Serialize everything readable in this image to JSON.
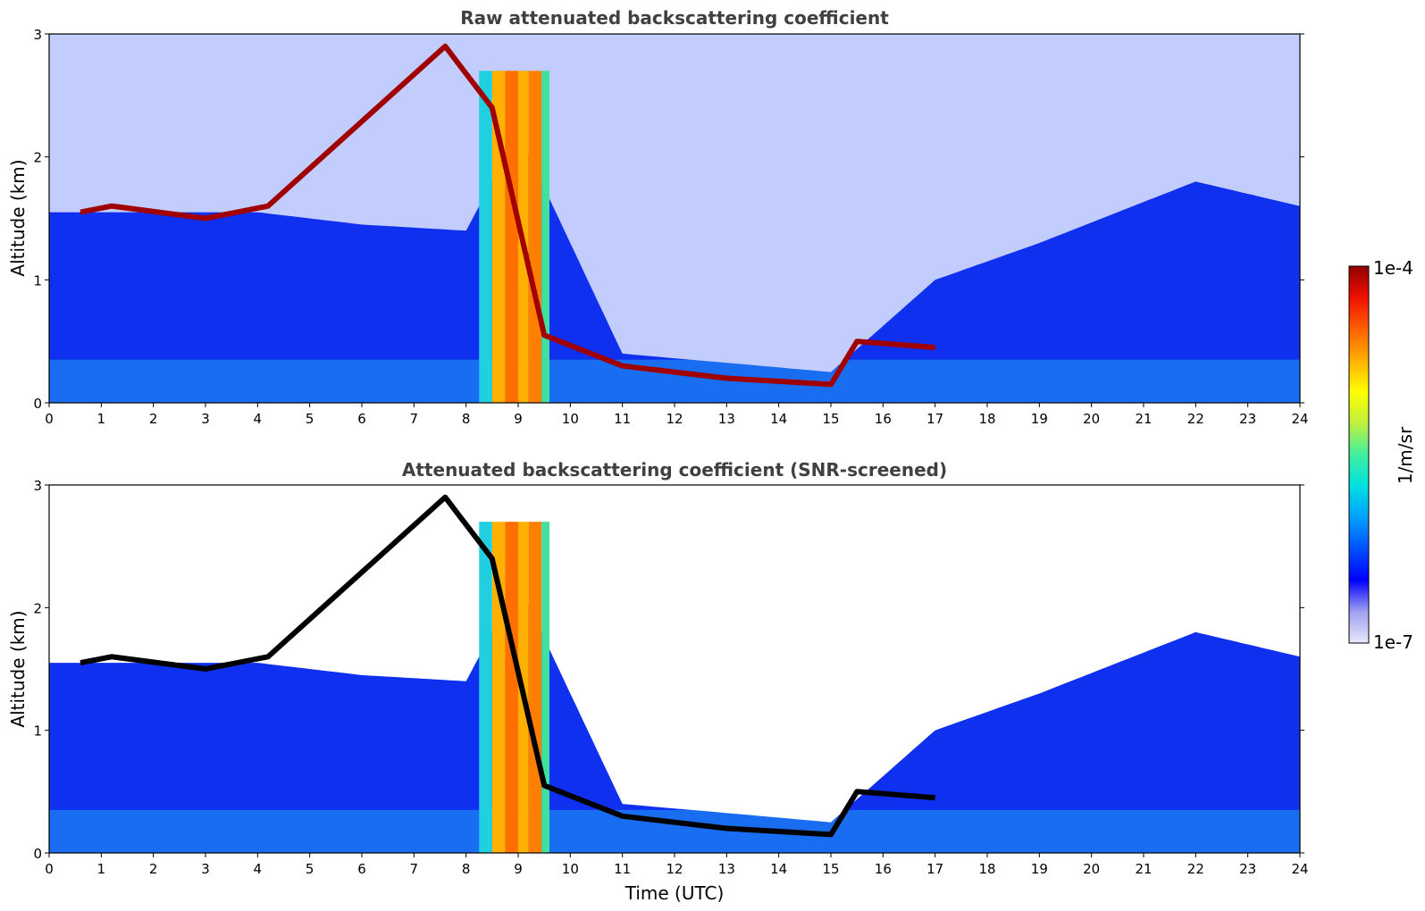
{
  "chart_data": [
    {
      "type": "heatmap",
      "title": "Raw attenuated backscattering coefficient",
      "xlabel": "",
      "ylabel": "Altitude (km)",
      "xlim": [
        0,
        24
      ],
      "ylim": [
        0,
        3
      ],
      "xticks": [
        "0",
        "1",
        "2",
        "3",
        "4",
        "5",
        "6",
        "7",
        "8",
        "9",
        "10",
        "11",
        "12",
        "13",
        "14",
        "15",
        "16",
        "17",
        "18",
        "19",
        "20",
        "21",
        "22",
        "23",
        "24"
      ],
      "yticks": [
        "0",
        "1",
        "2",
        "3"
      ],
      "screened": false,
      "boundary_layer_top_km": [
        [
          0,
          1.55
        ],
        [
          4,
          1.55
        ],
        [
          6,
          1.45
        ],
        [
          8,
          1.4
        ],
        [
          9,
          2.2
        ],
        [
          11,
          0.4
        ],
        [
          15,
          0.25
        ],
        [
          17,
          1.0
        ],
        [
          19,
          1.3
        ],
        [
          22,
          1.8
        ],
        [
          24,
          1.6
        ]
      ],
      "cloud_base_km": [
        [
          0.6,
          1.55
        ],
        [
          1.2,
          1.6
        ],
        [
          3.0,
          1.5
        ],
        [
          4.2,
          1.6
        ],
        [
          7.6,
          2.9
        ],
        [
          8.5,
          2.4
        ],
        [
          9.5,
          0.55
        ],
        [
          11,
          0.3
        ],
        [
          13,
          0.2
        ],
        [
          15,
          0.15
        ],
        [
          15.5,
          0.5
        ],
        [
          17,
          0.45
        ]
      ]
    },
    {
      "type": "heatmap",
      "title": "Attenuated backscattering coefficient (SNR-screened)",
      "xlabel": "Time (UTC)",
      "ylabel": "Altitude (km)",
      "xlim": [
        0,
        24
      ],
      "ylim": [
        0,
        3
      ],
      "xticks": [
        "0",
        "1",
        "2",
        "3",
        "4",
        "5",
        "6",
        "7",
        "8",
        "9",
        "10",
        "11",
        "12",
        "13",
        "14",
        "15",
        "16",
        "17",
        "18",
        "19",
        "20",
        "21",
        "22",
        "23",
        "24"
      ],
      "yticks": [
        "0",
        "1",
        "2",
        "3"
      ],
      "screened": true,
      "boundary_layer_top_km": [
        [
          0,
          1.55
        ],
        [
          4,
          1.55
        ],
        [
          6,
          1.45
        ],
        [
          8,
          1.4
        ],
        [
          9,
          2.2
        ],
        [
          11,
          0.4
        ],
        [
          15,
          0.25
        ],
        [
          17,
          1.0
        ],
        [
          19,
          1.3
        ],
        [
          22,
          1.8
        ],
        [
          24,
          1.6
        ]
      ],
      "cloud_base_km": [
        [
          0.6,
          1.55
        ],
        [
          1.2,
          1.6
        ],
        [
          3.0,
          1.5
        ],
        [
          4.2,
          1.6
        ],
        [
          7.6,
          2.9
        ],
        [
          8.5,
          2.4
        ],
        [
          9.5,
          0.55
        ],
        [
          11,
          0.3
        ],
        [
          13,
          0.2
        ],
        [
          15,
          0.15
        ],
        [
          15.5,
          0.5
        ],
        [
          17,
          0.45
        ]
      ]
    }
  ],
  "colorbar": {
    "label": "1/m/sr",
    "max_label": "1e-4",
    "min_label": "1e-7",
    "colors": [
      "#e8e8f8",
      "#a0a0f0",
      "#0000ff",
      "#0050ff",
      "#00a0ff",
      "#00e0e0",
      "#40f0a0",
      "#c0f040",
      "#ffff00",
      "#ffb000",
      "#ff6000",
      "#f01000",
      "#900000"
    ]
  }
}
